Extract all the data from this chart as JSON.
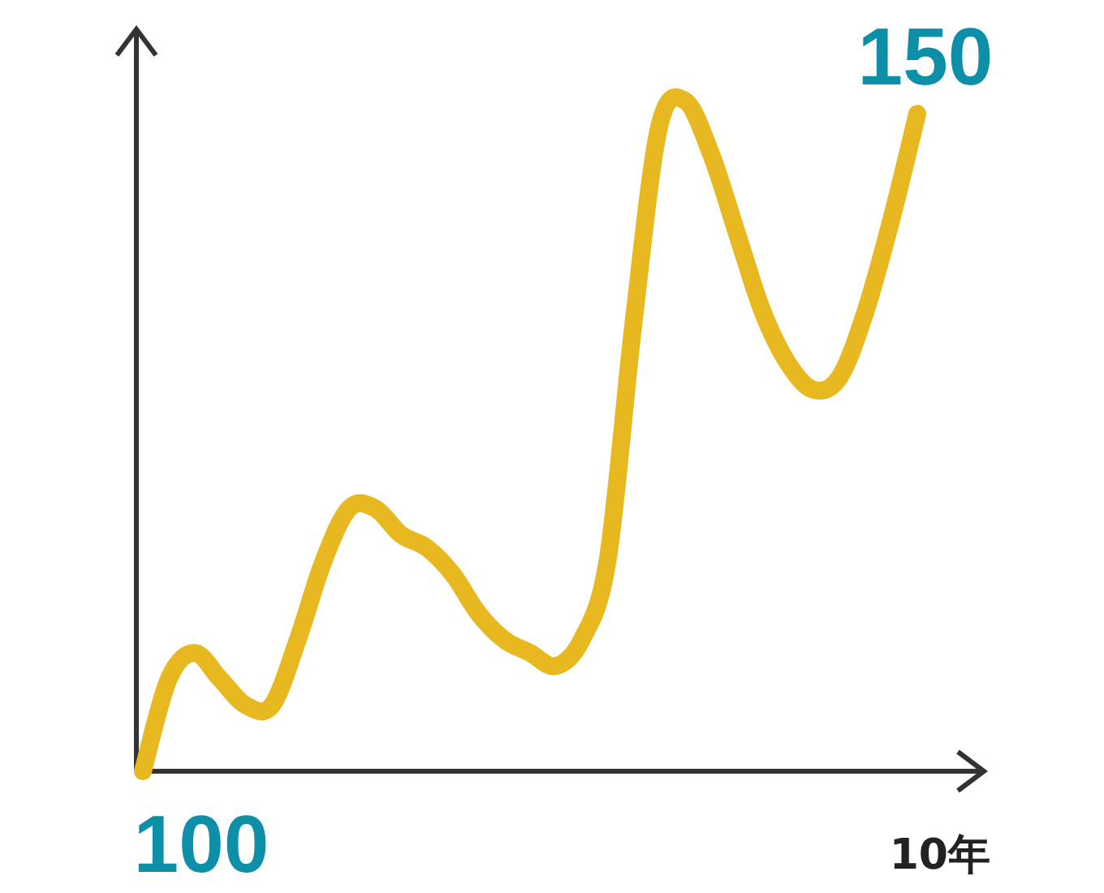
{
  "chart_data": {
    "type": "line",
    "xlabel": "10年",
    "categories": [
      null,
      null,
      null,
      null,
      null,
      null,
      null,
      null,
      null,
      null,
      null,
      null,
      null,
      null,
      null,
      null,
      null,
      null,
      null,
      null,
      null,
      null,
      null,
      null,
      null,
      null,
      null,
      null,
      null,
      null,
      null
    ],
    "series": [
      {
        "color": "#e8b820",
        "values": [
          100,
          107,
          109,
          107,
          105,
          105,
          110,
          116,
          120,
          120,
          118,
          117,
          115,
          112,
          110,
          109,
          108,
          110,
          116,
          134,
          149,
          151,
          147,
          141,
          135,
          131,
          129,
          130,
          135,
          142,
          150
        ],
        "value_labels": [
          "100",
          null,
          null,
          null,
          null,
          null,
          null,
          null,
          null,
          null,
          null,
          null,
          null,
          null,
          null,
          null,
          null,
          null,
          null,
          null,
          null,
          null,
          null,
          null,
          null,
          null,
          null,
          null,
          null,
          null,
          "150"
        ]
      }
    ],
    "line_style": "solid"
  }
}
